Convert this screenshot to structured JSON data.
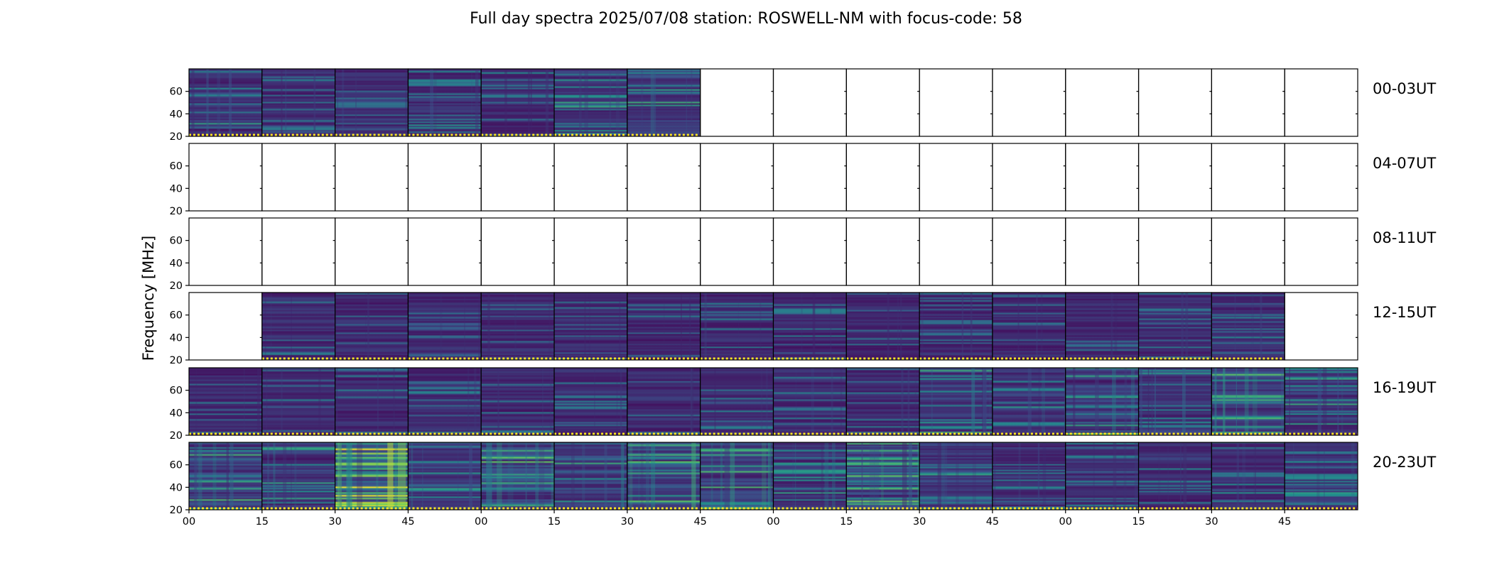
{
  "chart_data": {
    "type": "heatmap",
    "title": "Full day spectra 2025/07/08 station: ROSWELL-NM with focus-code: 58",
    "ylabel": "Frequency [MHz]",
    "xlabel": "",
    "ylim": [
      20,
      80
    ],
    "yticks": [
      "20",
      "40",
      "60"
    ],
    "xticks": [
      "00",
      "15",
      "30",
      "45",
      "00",
      "15",
      "30",
      "45",
      "00",
      "15",
      "30",
      "45",
      "00",
      "15",
      "30",
      "45"
    ],
    "colormap": "viridis",
    "colors": {
      "low": "#440154",
      "mid": "#21918c",
      "high": "#fde725",
      "frame": "#000000",
      "flag": "#fde725"
    },
    "panels_per_row": 16,
    "rows": [
      {
        "label": "00-03UT",
        "panels": [
          1,
          1,
          1,
          1,
          1,
          1,
          1,
          0,
          0,
          0,
          0,
          0,
          0,
          0,
          0,
          0
        ],
        "intensity": [
          0.22,
          0.15,
          0.15,
          0.2,
          0.15,
          0.25,
          0.35,
          0,
          0,
          0,
          0,
          0,
          0,
          0,
          0,
          0
        ]
      },
      {
        "label": "04-07UT",
        "panels": [
          0,
          0,
          0,
          0,
          0,
          0,
          0,
          0,
          0,
          0,
          0,
          0,
          0,
          0,
          0,
          0
        ],
        "intensity": [
          0,
          0,
          0,
          0,
          0,
          0,
          0,
          0,
          0,
          0,
          0,
          0,
          0,
          0,
          0,
          0
        ]
      },
      {
        "label": "08-11UT",
        "panels": [
          0,
          0,
          0,
          0,
          0,
          0,
          0,
          0,
          0,
          0,
          0,
          0,
          0,
          0,
          0,
          0
        ],
        "intensity": [
          0,
          0,
          0,
          0,
          0,
          0,
          0,
          0,
          0,
          0,
          0,
          0,
          0,
          0,
          0,
          0
        ]
      },
      {
        "label": "12-15UT",
        "panels": [
          0,
          1,
          1,
          1,
          1,
          1,
          1,
          1,
          1,
          1,
          1,
          1,
          1,
          1,
          1,
          0
        ],
        "intensity": [
          0,
          0.12,
          0.08,
          0.08,
          0.08,
          0.08,
          0.08,
          0.1,
          0.1,
          0.1,
          0.1,
          0.1,
          0.1,
          0.12,
          0.12,
          0
        ]
      },
      {
        "label": "16-19UT",
        "panels": [
          1,
          1,
          1,
          1,
          1,
          1,
          1,
          1,
          1,
          1,
          1,
          1,
          1,
          1,
          1,
          1
        ],
        "intensity": [
          0.1,
          0.1,
          0.1,
          0.1,
          0.1,
          0.12,
          0.12,
          0.12,
          0.15,
          0.12,
          0.35,
          0.3,
          0.38,
          0.25,
          0.45,
          0.3
        ]
      },
      {
        "label": "20-23UT",
        "panels": [
          1,
          1,
          1,
          1,
          1,
          1,
          1,
          1,
          1,
          1,
          1,
          1,
          1,
          1,
          1,
          1
        ],
        "intensity": [
          0.45,
          0.3,
          0.85,
          0.35,
          0.55,
          0.35,
          0.6,
          0.55,
          0.3,
          0.5,
          0.3,
          0.2,
          0.2,
          0.18,
          0.2,
          0.22
        ]
      }
    ]
  }
}
